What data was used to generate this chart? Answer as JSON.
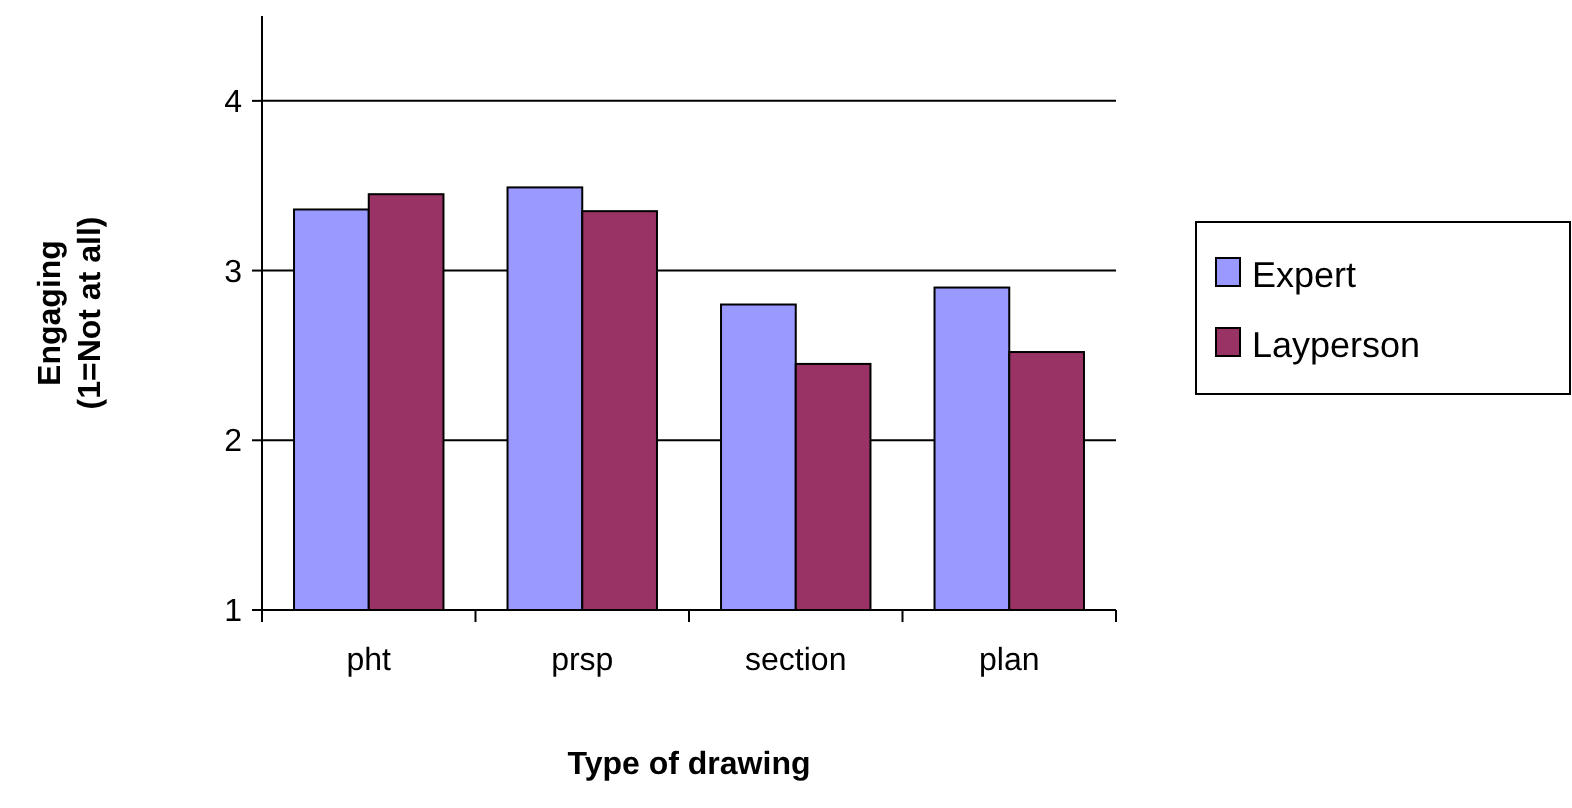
{
  "chart_data": {
    "type": "bar",
    "xlabel": "Type of drawing",
    "ylabel": "Engaging\n(1=Not at all)",
    "categories": [
      "pht",
      "prsp",
      "section",
      "plan"
    ],
    "series": [
      {
        "name": "Expert",
        "color": "#9999ff",
        "values": [
          3.36,
          3.49,
          2.8,
          2.9
        ]
      },
      {
        "name": "Layperson",
        "color": "#993366",
        "values": [
          3.45,
          3.35,
          2.45,
          2.52
        ]
      }
    ],
    "ylim": [
      1,
      4.5
    ],
    "yticks": [
      1,
      2,
      3,
      4
    ],
    "grid": "y",
    "legend": "right"
  }
}
